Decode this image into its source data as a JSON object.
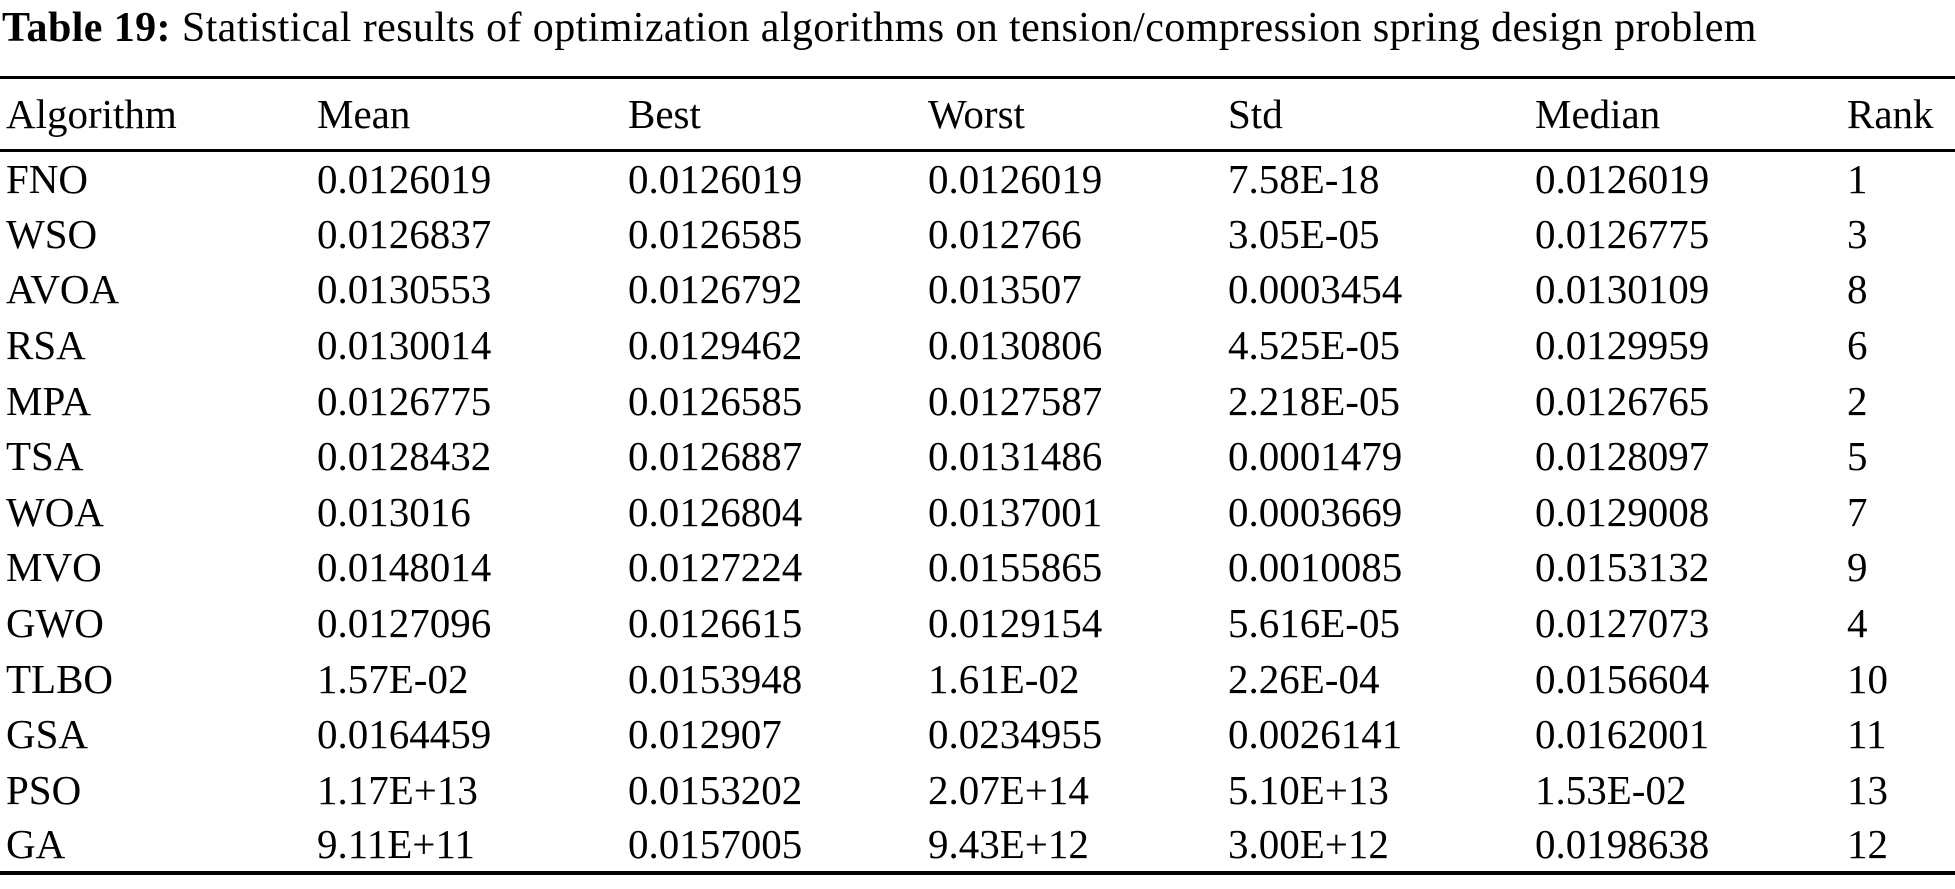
{
  "caption": {
    "label": "Table 19:",
    "text": " Statistical results of optimization algorithms on tension/compression spring design problem"
  },
  "table": {
    "columns": [
      "Algorithm",
      "Mean",
      "Best",
      "Worst",
      "Std",
      "Median",
      "Rank"
    ],
    "rows": [
      [
        "FNO",
        "0.0126019",
        "0.0126019",
        "0.0126019",
        "7.58E-18",
        "0.0126019",
        "1"
      ],
      [
        "WSO",
        "0.0126837",
        "0.0126585",
        "0.012766",
        "3.05E-05",
        "0.0126775",
        "3"
      ],
      [
        "AVOA",
        "0.0130553",
        "0.0126792",
        "0.013507",
        "0.0003454",
        "0.0130109",
        "8"
      ],
      [
        "RSA",
        "0.0130014",
        "0.0129462",
        "0.0130806",
        "4.525E-05",
        "0.0129959",
        "6"
      ],
      [
        "MPA",
        "0.0126775",
        "0.0126585",
        "0.0127587",
        "2.218E-05",
        "0.0126765",
        "2"
      ],
      [
        "TSA",
        "0.0128432",
        "0.0126887",
        "0.0131486",
        "0.0001479",
        "0.0128097",
        "5"
      ],
      [
        "WOA",
        "0.013016",
        "0.0126804",
        "0.0137001",
        "0.0003669",
        "0.0129008",
        "7"
      ],
      [
        "MVO",
        "0.0148014",
        "0.0127224",
        "0.0155865",
        "0.0010085",
        "0.0153132",
        "9"
      ],
      [
        "GWO",
        "0.0127096",
        "0.0126615",
        "0.0129154",
        "5.616E-05",
        "0.0127073",
        "4"
      ],
      [
        "TLBO",
        "1.57E-02",
        "0.0153948",
        "1.61E-02",
        "2.26E-04",
        "0.0156604",
        "10"
      ],
      [
        "GSA",
        "0.0164459",
        "0.012907",
        "0.0234955",
        "0.0026141",
        "0.0162001",
        "11"
      ],
      [
        "PSO",
        "1.17E+13",
        "0.0153202",
        "2.07E+14",
        "5.10E+13",
        "1.53E-02",
        "13"
      ],
      [
        "GA",
        "9.11E+11",
        "0.0157005",
        "9.43E+12",
        "3.00E+12",
        "0.0198638",
        "12"
      ]
    ]
  },
  "chart_data": {
    "type": "table",
    "title": "Table 19: Statistical results of optimization algorithms on tension/compression spring design problem",
    "columns": [
      "Algorithm",
      "Mean",
      "Best",
      "Worst",
      "Std",
      "Median",
      "Rank"
    ],
    "rows": [
      {
        "algorithm": "FNO",
        "mean": 0.0126019,
        "best": 0.0126019,
        "worst": 0.0126019,
        "std": 7.58e-18,
        "median": 0.0126019,
        "rank": 1
      },
      {
        "algorithm": "WSO",
        "mean": 0.0126837,
        "best": 0.0126585,
        "worst": 0.012766,
        "std": 3.05e-05,
        "median": 0.0126775,
        "rank": 3
      },
      {
        "algorithm": "AVOA",
        "mean": 0.0130553,
        "best": 0.0126792,
        "worst": 0.013507,
        "std": 0.0003454,
        "median": 0.0130109,
        "rank": 8
      },
      {
        "algorithm": "RSA",
        "mean": 0.0130014,
        "best": 0.0129462,
        "worst": 0.0130806,
        "std": 4.525e-05,
        "median": 0.0129959,
        "rank": 6
      },
      {
        "algorithm": "MPA",
        "mean": 0.0126775,
        "best": 0.0126585,
        "worst": 0.0127587,
        "std": 2.218e-05,
        "median": 0.0126765,
        "rank": 2
      },
      {
        "algorithm": "TSA",
        "mean": 0.0128432,
        "best": 0.0126887,
        "worst": 0.0131486,
        "std": 0.0001479,
        "median": 0.0128097,
        "rank": 5
      },
      {
        "algorithm": "WOA",
        "mean": 0.013016,
        "best": 0.0126804,
        "worst": 0.0137001,
        "std": 0.0003669,
        "median": 0.0129008,
        "rank": 7
      },
      {
        "algorithm": "MVO",
        "mean": 0.0148014,
        "best": 0.0127224,
        "worst": 0.0155865,
        "std": 0.0010085,
        "median": 0.0153132,
        "rank": 9
      },
      {
        "algorithm": "GWO",
        "mean": 0.0127096,
        "best": 0.0126615,
        "worst": 0.0129154,
        "std": 5.616e-05,
        "median": 0.0127073,
        "rank": 4
      },
      {
        "algorithm": "TLBO",
        "mean": 0.0157,
        "best": 0.0153948,
        "worst": 0.0161,
        "std": 0.000226,
        "median": 0.0156604,
        "rank": 10
      },
      {
        "algorithm": "GSA",
        "mean": 0.0164459,
        "best": 0.012907,
        "worst": 0.0234955,
        "std": 0.0026141,
        "median": 0.0162001,
        "rank": 11
      },
      {
        "algorithm": "PSO",
        "mean": 11700000000000.0,
        "best": 0.0153202,
        "worst": 207000000000000.0,
        "std": 51000000000000.0,
        "median": 0.0153,
        "rank": 13
      },
      {
        "algorithm": "GA",
        "mean": 911000000000.0,
        "best": 0.0157005,
        "worst": 9430000000000.0,
        "std": 3000000000000.0,
        "median": 0.0198638,
        "rank": 12
      }
    ]
  }
}
